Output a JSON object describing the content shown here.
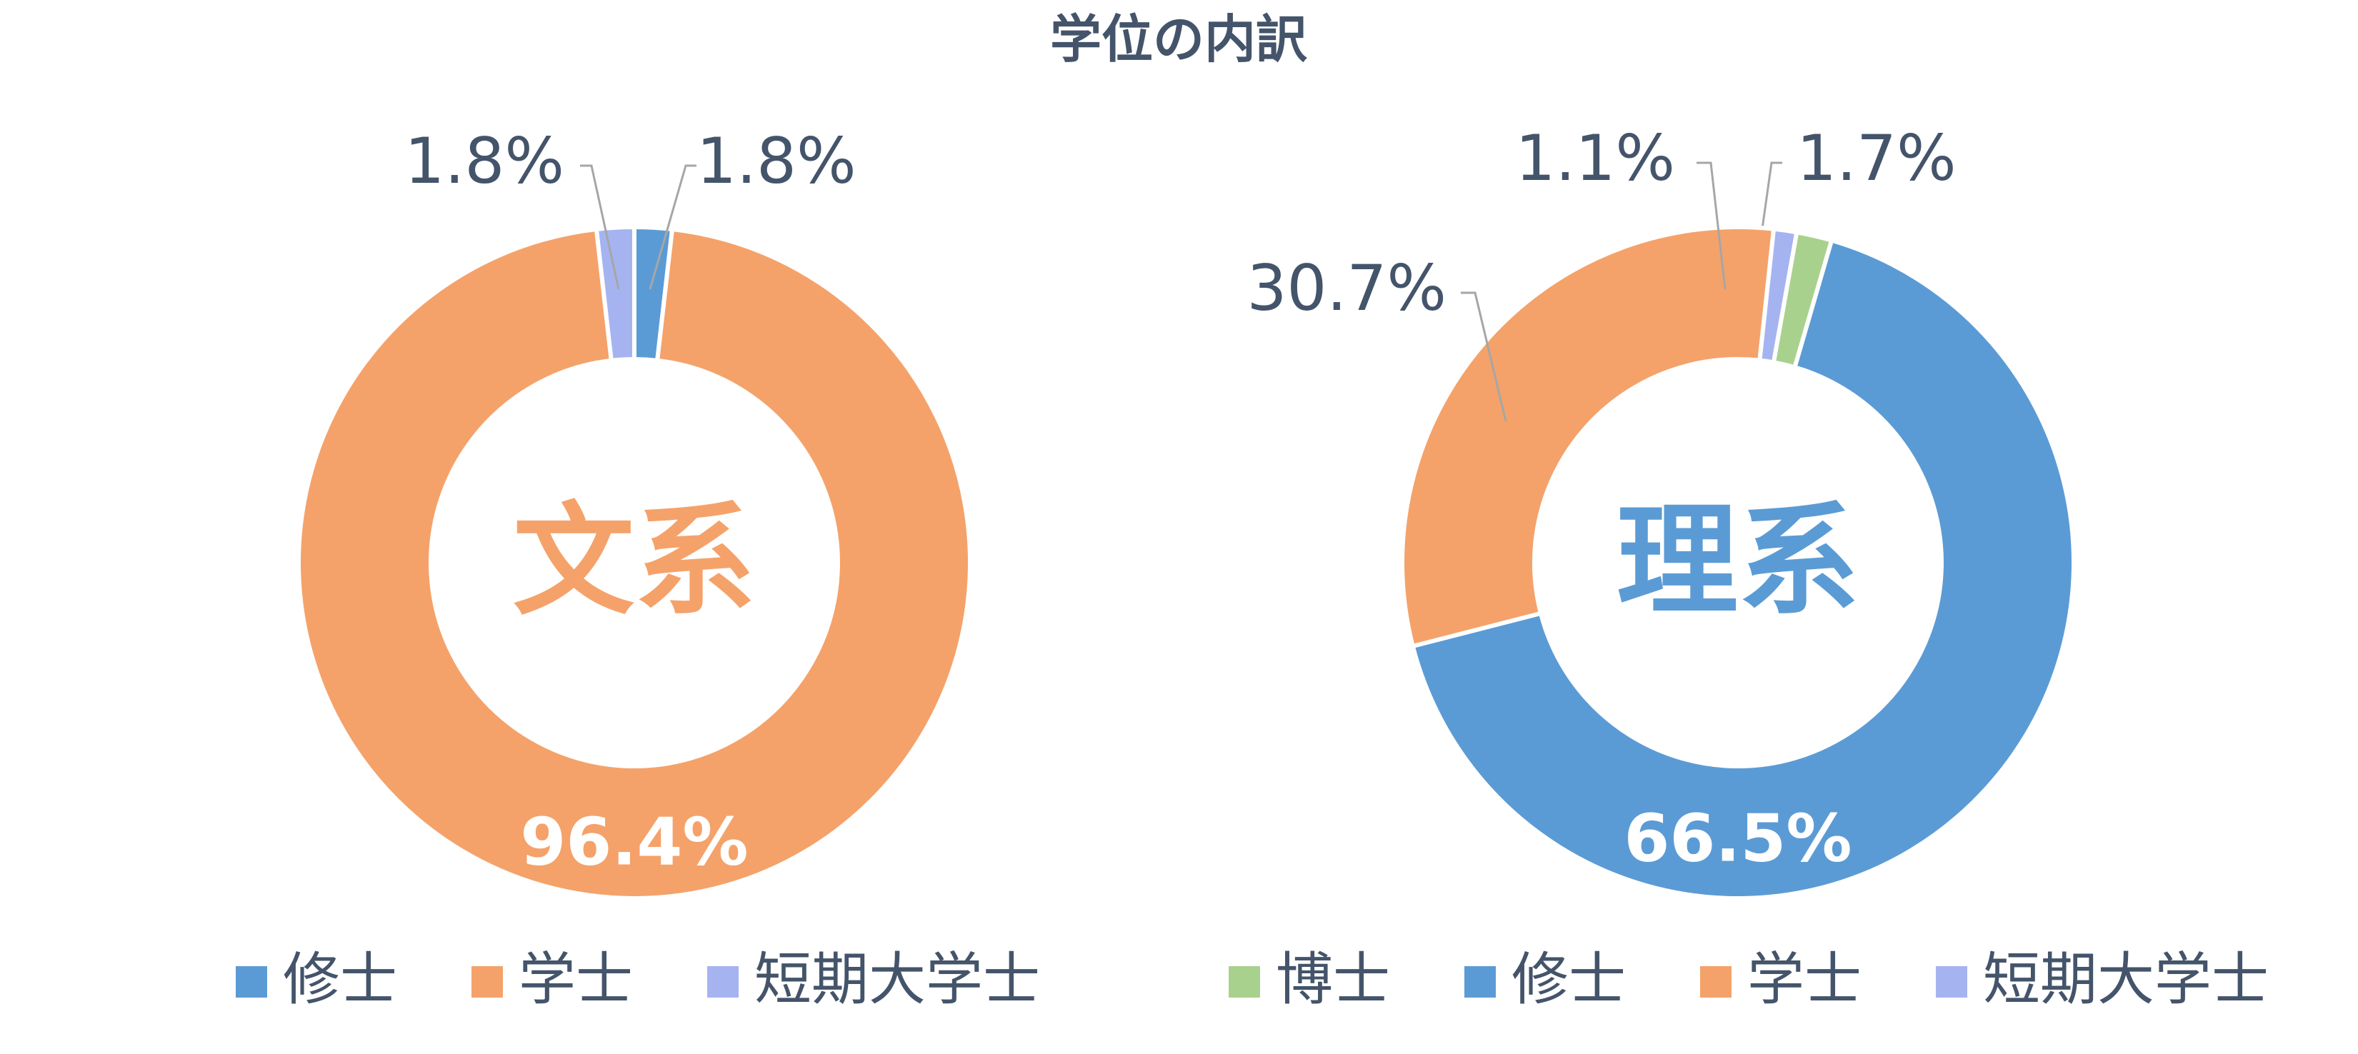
{
  "title": "学位の内訳",
  "colors": {
    "hakushi": "#a9d18e",
    "shushi": "#5b9bd5",
    "gakushi": "#f4a26a",
    "tanki": "#a5b4f0",
    "text": "#44546a",
    "leader": "#a6a6a6"
  },
  "chart_data": [
    {
      "type": "pie",
      "donut": true,
      "center_label": "文系",
      "center_color": "#f4a26a",
      "legend_position": "bottom",
      "slices": [
        {
          "name": "修士",
          "value": 1.8,
          "label": "1.8%",
          "color": "#5b9bd5"
        },
        {
          "name": "学士",
          "value": 96.4,
          "label": "96.4%",
          "color": "#f4a26a"
        },
        {
          "name": "短期大学士",
          "value": 1.8,
          "label": "1.8%",
          "color": "#a5b4f0"
        }
      ]
    },
    {
      "type": "pie",
      "donut": true,
      "center_label": "理系",
      "center_color": "#5b9bd5",
      "legend_position": "bottom",
      "slices": [
        {
          "name": "博士",
          "value": 1.7,
          "label": "1.7%",
          "color": "#a9d18e"
        },
        {
          "name": "修士",
          "value": 66.5,
          "label": "66.5%",
          "color": "#5b9bd5"
        },
        {
          "name": "学士",
          "value": 30.7,
          "label": "30.7%",
          "color": "#f4a26a"
        },
        {
          "name": "短期大学士",
          "value": 1.1,
          "label": "1.1%",
          "color": "#a5b4f0"
        }
      ]
    }
  ]
}
